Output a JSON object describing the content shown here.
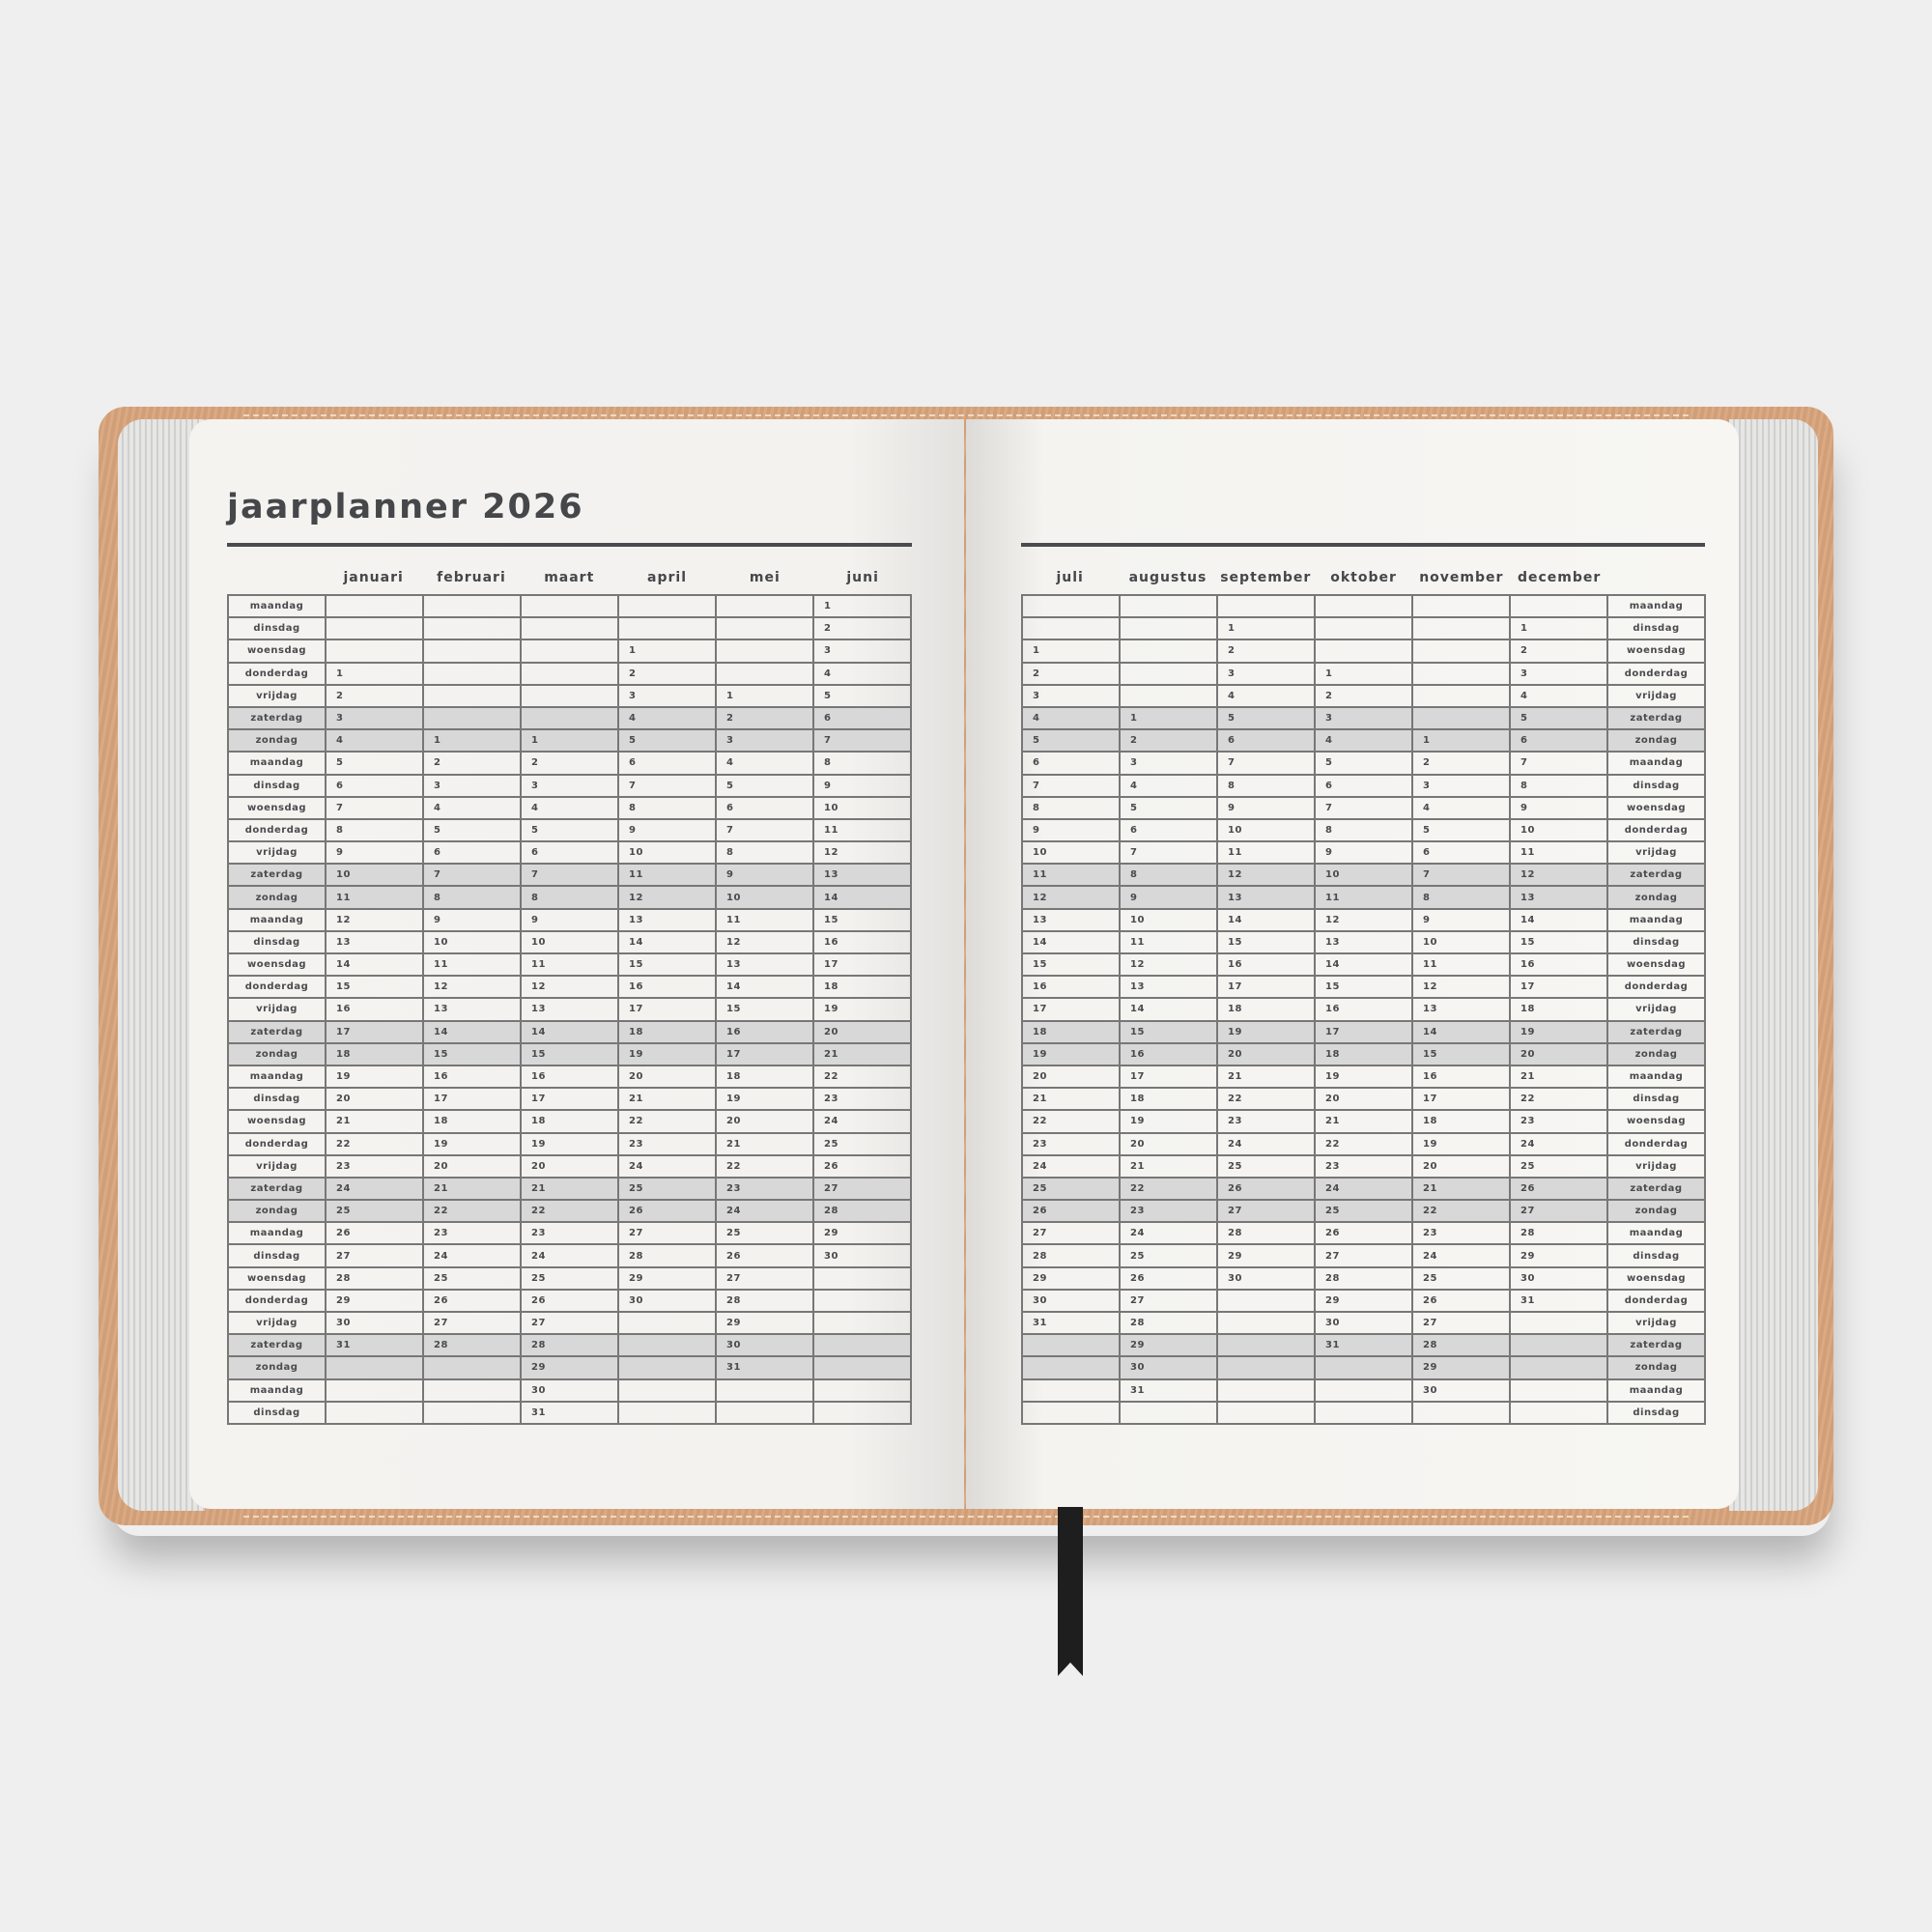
{
  "title": "jaarplanner 2026",
  "weekdays": [
    "maandag",
    "dinsdag",
    "woensdag",
    "donderdag",
    "vrijdag",
    "zaterdag",
    "zondag"
  ],
  "weekend": [
    "zaterdag",
    "zondag"
  ],
  "rows": 37,
  "left_months": [
    {
      "name": "januari",
      "first_weekday": "donderdag",
      "days": 31
    },
    {
      "name": "februari",
      "first_weekday": "zondag",
      "days": 28
    },
    {
      "name": "maart",
      "first_weekday": "zondag",
      "days": 31
    },
    {
      "name": "april",
      "first_weekday": "woensdag",
      "days": 30
    },
    {
      "name": "mei",
      "first_weekday": "vrijdag",
      "days": 31
    },
    {
      "name": "juni",
      "first_weekday": "maandag",
      "days": 30
    }
  ],
  "right_months": [
    {
      "name": "juli",
      "first_weekday": "woensdag",
      "days": 31
    },
    {
      "name": "augustus",
      "first_weekday": "zaterdag",
      "days": 31
    },
    {
      "name": "september",
      "first_weekday": "dinsdag",
      "days": 30
    },
    {
      "name": "oktober",
      "first_weekday": "donderdag",
      "days": 31
    },
    {
      "name": "november",
      "first_weekday": "zondag",
      "days": 30
    },
    {
      "name": "december",
      "first_weekday": "dinsdag",
      "days": 31
    }
  ],
  "colors": {
    "cover": "#d9a57c",
    "paper": "#f6f5f2",
    "weekend_shade": "#d8d8d8",
    "ink": "#45474a",
    "ribbon": "#1e1e1e"
  }
}
